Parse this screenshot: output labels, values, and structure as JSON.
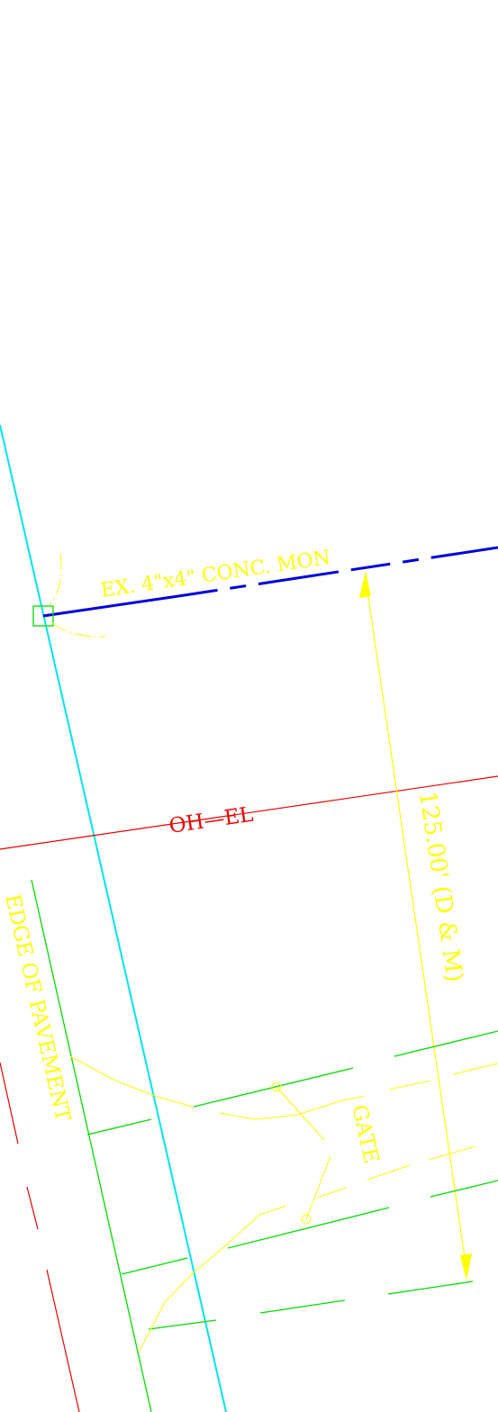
{
  "labels": {
    "monument": "EX. 4\"x4\" CONC. MON",
    "overhead_electric": "OH—EL",
    "dimension": "125.00' (D & M)",
    "edge_of_pavement": "EDGE OF PAVEMENT",
    "gate": "GATE"
  },
  "colors": {
    "background": "#ffffff",
    "right_of_way_line": "#00e5ee",
    "property_line": "#0000dd",
    "overhead_electric": "#ee0000",
    "annotation": "#ffff00",
    "fence": "#00dd00",
    "monument_marker": "#00dd00"
  }
}
